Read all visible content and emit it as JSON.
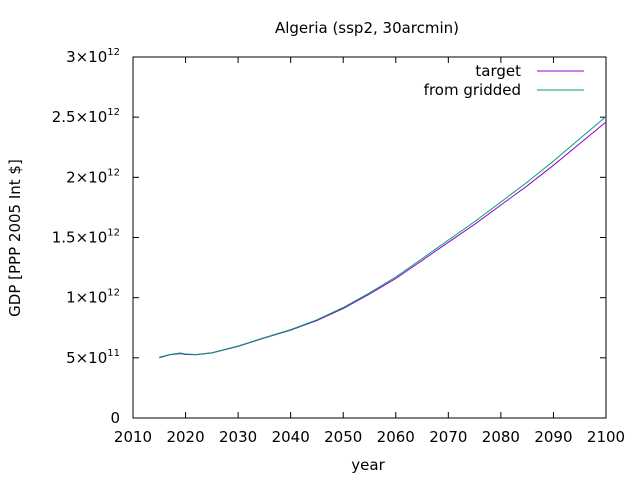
{
  "chart_data": {
    "type": "line",
    "title": "Algeria (ssp2, 30arcmin)",
    "xlabel": "year",
    "ylabel": "GDP [PPP 2005 Int $]",
    "xlim": [
      2010,
      2100
    ],
    "ylim": [
      0,
      3000000000000
    ],
    "grid": false,
    "legend_position": "top-right",
    "x_ticks": [
      {
        "value": 2010,
        "label": "2010"
      },
      {
        "value": 2020,
        "label": "2020"
      },
      {
        "value": 2030,
        "label": "2030"
      },
      {
        "value": 2040,
        "label": "2040"
      },
      {
        "value": 2050,
        "label": "2050"
      },
      {
        "value": 2060,
        "label": "2060"
      },
      {
        "value": 2070,
        "label": "2070"
      },
      {
        "value": 2080,
        "label": "2080"
      },
      {
        "value": 2090,
        "label": "2090"
      },
      {
        "value": 2100,
        "label": "2100"
      }
    ],
    "y_ticks": [
      {
        "value": 0,
        "mantissa": "0",
        "exponent": ""
      },
      {
        "value": 500000000000,
        "mantissa": "5×10",
        "exponent": "11"
      },
      {
        "value": 1000000000000,
        "mantissa": "1×10",
        "exponent": "12"
      },
      {
        "value": 1500000000000,
        "mantissa": "1.5×10",
        "exponent": "12"
      },
      {
        "value": 2000000000000,
        "mantissa": "2×10",
        "exponent": "12"
      },
      {
        "value": 2500000000000,
        "mantissa": "2.5×10",
        "exponent": "12"
      },
      {
        "value": 3000000000000,
        "mantissa": "3×10",
        "exponent": "12"
      }
    ],
    "series": [
      {
        "name": "target",
        "color": "#9400d3",
        "x": [
          2015,
          2017,
          2019,
          2020,
          2022,
          2025,
          2030,
          2035,
          2040,
          2045,
          2050,
          2055,
          2060,
          2065,
          2070,
          2075,
          2080,
          2085,
          2090,
          2095,
          2100
        ],
        "y": [
          500000000000,
          525000000000,
          535000000000,
          528000000000,
          525000000000,
          540000000000,
          595000000000,
          665000000000,
          730000000000,
          810000000000,
          910000000000,
          1030000000000,
          1160000000000,
          1310000000000,
          1460000000000,
          1610000000000,
          1770000000000,
          1930000000000,
          2100000000000,
          2280000000000,
          2460000000000
        ]
      },
      {
        "name": "from gridded",
        "color": "#009e73",
        "x": [
          2015,
          2017,
          2019,
          2020,
          2022,
          2025,
          2030,
          2035,
          2040,
          2045,
          2050,
          2055,
          2060,
          2065,
          2070,
          2075,
          2080,
          2085,
          2090,
          2095,
          2100
        ],
        "y": [
          505000000000,
          528000000000,
          540000000000,
          532000000000,
          528000000000,
          543000000000,
          598000000000,
          668000000000,
          735000000000,
          816000000000,
          918000000000,
          1040000000000,
          1172000000000,
          1325000000000,
          1478000000000,
          1632000000000,
          1795000000000,
          1960000000000,
          2135000000000,
          2320000000000,
          2505000000000
        ]
      }
    ]
  }
}
